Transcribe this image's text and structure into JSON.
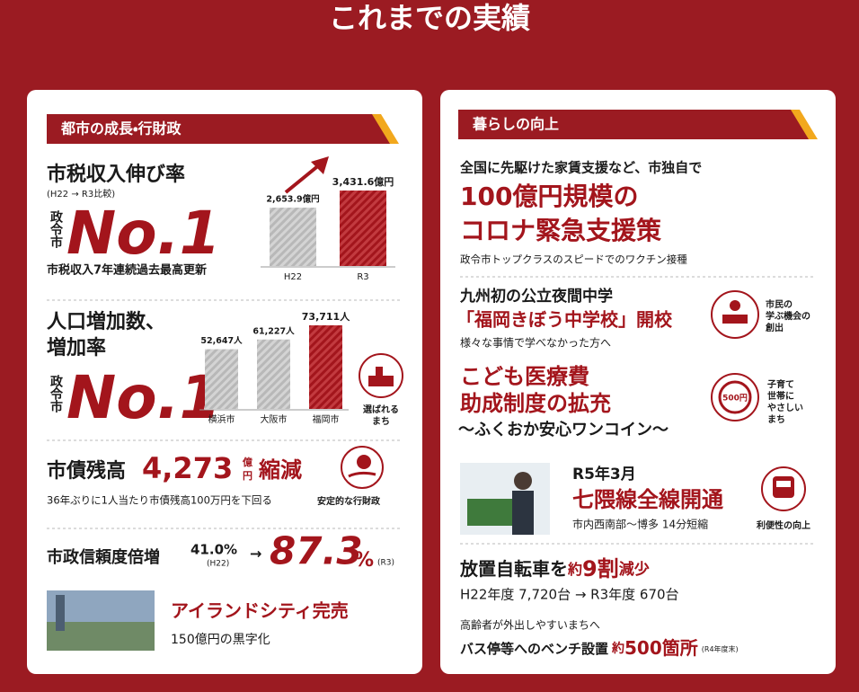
{
  "title": "これまでの実績",
  "left": {
    "heading": "都市の成長・行財政",
    "tax": {
      "title": "市税収入伸び率",
      "period": "(H22 → R3比較)",
      "rank_prefix": "政令市",
      "rank": "No.1",
      "note": "市税収入7年連続過去最高更新",
      "chart": {
        "categories": [
          "H22",
          "R3"
        ],
        "values": [
          2653.9,
          3431.6
        ],
        "value_labels": [
          "2,653.9億円",
          "3,431.6億円"
        ]
      }
    },
    "population": {
      "title_lines": [
        "人口増加数、",
        "増加率"
      ],
      "rank_prefix": "政令市",
      "rank": "No.1",
      "chart": {
        "categories": [
          "横浜市",
          "大阪市",
          "福岡市"
        ],
        "values": [
          52647,
          61227,
          73711
        ],
        "value_labels": [
          "52,647人",
          "61,227人",
          "73,711人"
        ]
      },
      "badge_lines": [
        "選ばれる",
        "まち"
      ]
    },
    "debt": {
      "label": "市債残高",
      "amount": "4,273",
      "unit_lines": [
        "億",
        "円"
      ],
      "change": "縮減",
      "note": "36年ぶりに1人当たり市債残高100万円を下回る",
      "badge": "安定的な行財政"
    },
    "trust": {
      "label": "市政信頼度倍増",
      "before": "41.0%",
      "before_year": "(H22)",
      "arrow": "→",
      "after": "87.3",
      "after_unit": "%",
      "after_year": "(R3)"
    },
    "island": {
      "title": "アイランドシティ完売",
      "note": "150億円の黒字化"
    }
  },
  "right": {
    "heading": "暮らしの向上",
    "covid": {
      "lead": "全国に先駆けた家賃支援など、市独自で",
      "headline_lines": [
        "100億円規模の",
        "コロナ緊急支援策"
      ],
      "note": "政令市トップクラスのスピードでのワクチン接種"
    },
    "school": {
      "lead": "九州初の公立夜間中学",
      "headline": "「福岡きぼう中学校」開校",
      "note": "様々な事情で学べなかった方へ",
      "badge_lines": [
        "市民の",
        "学ぶ機会の",
        "創出"
      ]
    },
    "medical": {
      "headline_lines": [
        "こども医療費",
        "助成制度の拡充"
      ],
      "subline": "～ふくおか安心ワンコイン～",
      "coin": "500円",
      "badge_lines": [
        "子育て",
        "世帯に",
        "やさしい",
        "まち"
      ]
    },
    "subway": {
      "date": "R5年3月",
      "headline": "七隈線全線開通",
      "note": "市内西南部～博多 14分短縮",
      "badge": "利便性の向上"
    },
    "bicycle": {
      "lead": "放置自転車を",
      "approx": "約",
      "amount": "9割",
      "change": "減少",
      "detail": "H22年度 7,720台 → R3年度 670台"
    },
    "bench": {
      "lead": "高齢者が外出しやすいまちへ",
      "text": "バス停等へのベンチ設置",
      "approx": "約",
      "amount": "500箇所",
      "note": "(R4年度末)"
    }
  }
}
